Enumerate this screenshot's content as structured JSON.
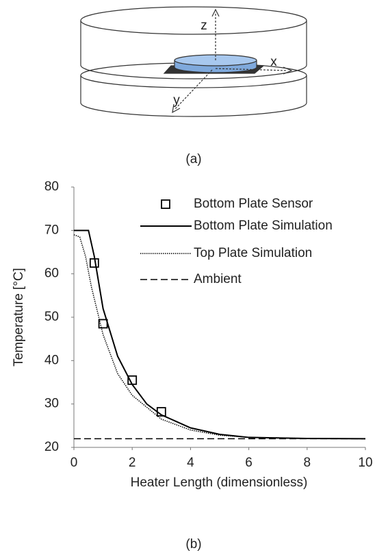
{
  "figure_a": {
    "axis_labels": {
      "z": "z",
      "x": "x",
      "y": "y"
    },
    "caption": "(a)"
  },
  "chart_data": {
    "type": "line",
    "x_label": "Heater Length (dimensionless)",
    "y_label": "Temperature [°C]",
    "xlim": [
      0,
      10
    ],
    "ylim": [
      20,
      80
    ],
    "xticks": [
      0,
      2,
      4,
      6,
      8,
      10
    ],
    "yticks": [
      20,
      30,
      40,
      50,
      60,
      70,
      80
    ],
    "legend": "upper right",
    "series": [
      {
        "name": "Bottom Plate Sensor",
        "color": "#000000",
        "style": "marker",
        "x": [
          0.7,
          1,
          2,
          3
        ],
        "values": [
          62.5,
          48.5,
          35.5,
          28.2
        ]
      },
      {
        "name": "Bottom Plate Simulation",
        "color": "#000000",
        "style": "solid",
        "x": [
          0,
          0.5,
          0.7,
          1,
          1.5,
          2,
          2.5,
          3,
          4,
          5,
          6,
          8,
          10
        ],
        "values": [
          70,
          70,
          64,
          52,
          41,
          34.5,
          30,
          27.5,
          24.5,
          23,
          22.3,
          22.05,
          22
        ]
      },
      {
        "name": "Top Plate Simulation",
        "color": "#000000",
        "style": "dotted",
        "x": [
          0,
          0.2,
          0.4,
          0.6,
          1,
          1.5,
          2,
          3,
          4,
          5,
          6,
          8,
          10
        ],
        "values": [
          69,
          68.5,
          64,
          57,
          46,
          37,
          32,
          26.5,
          24,
          22.8,
          22.3,
          22.05,
          22
        ]
      },
      {
        "name": "Ambient",
        "color": "#000000",
        "style": "dashed",
        "x": [
          0,
          10
        ],
        "values": [
          22,
          22
        ]
      }
    ]
  },
  "caption_b": "(b)"
}
